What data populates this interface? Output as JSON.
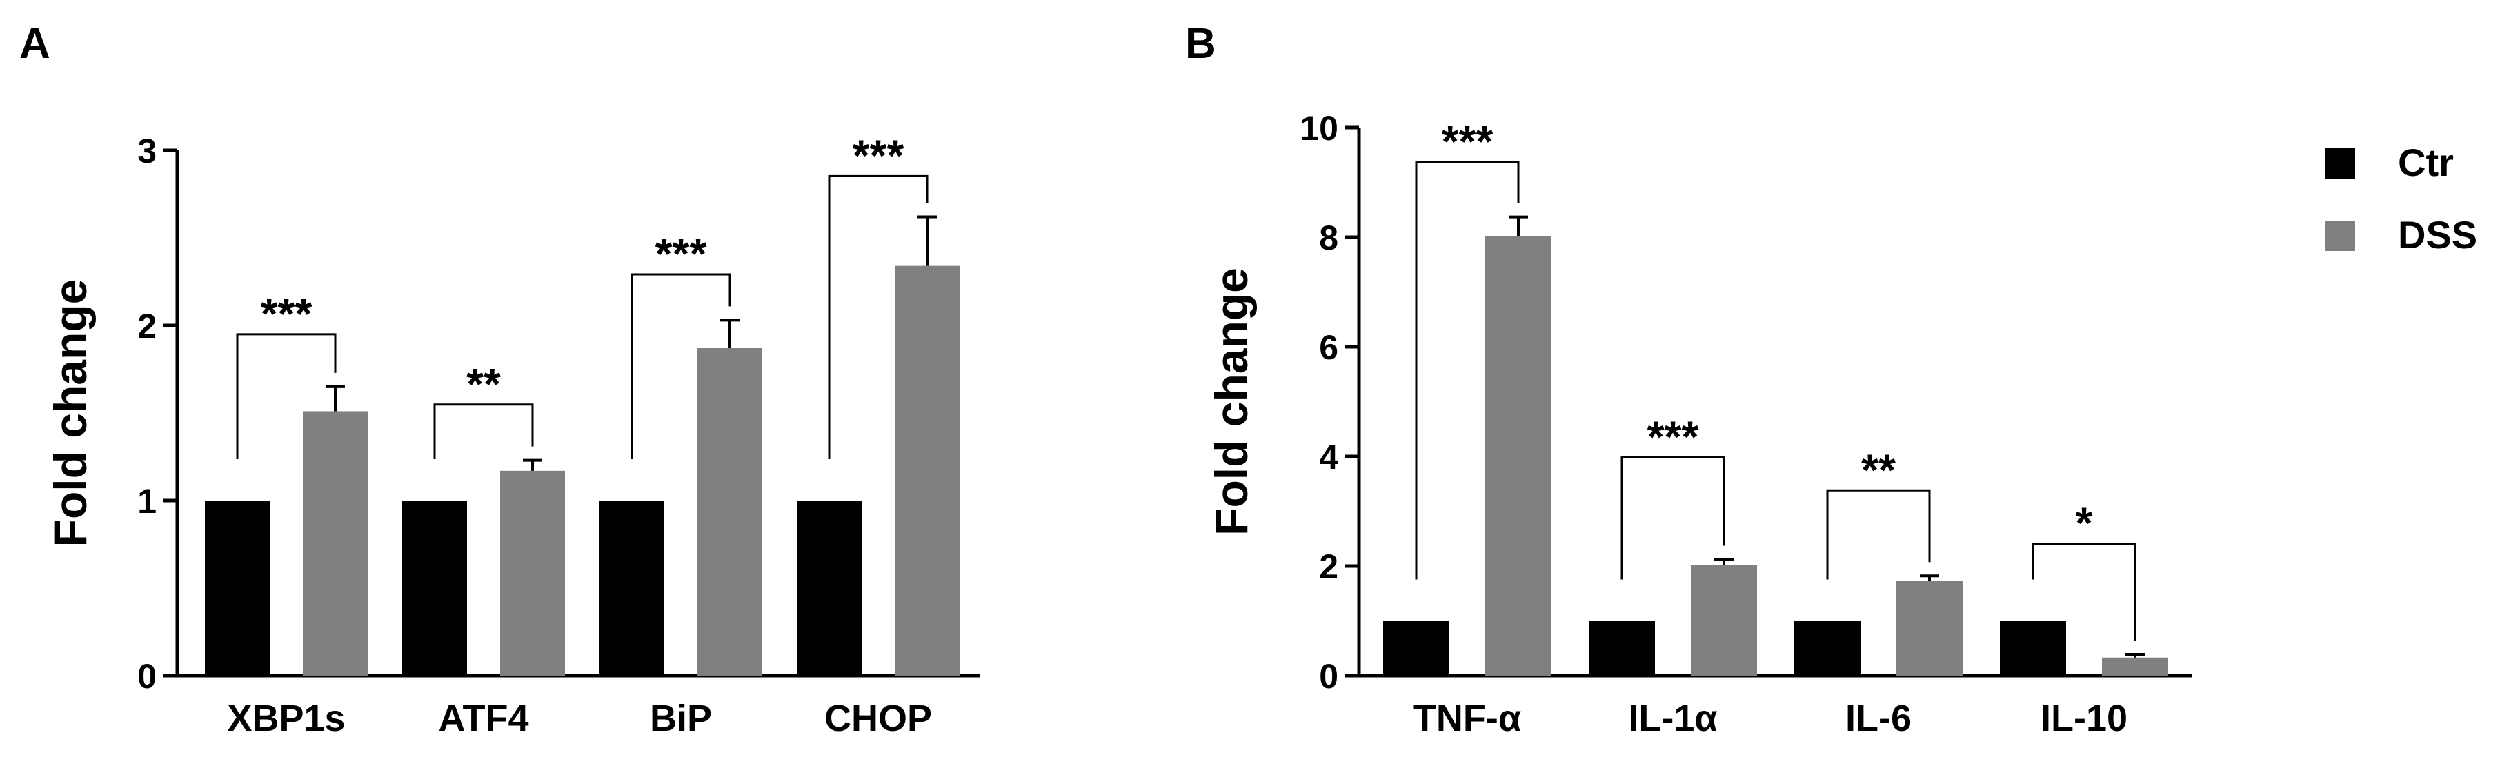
{
  "legend": {
    "position": "right",
    "items": [
      {
        "label": "Ctr",
        "color": "#000000"
      },
      {
        "label": "DSS",
        "color": "#808080"
      }
    ]
  },
  "colors": {
    "ctr": "#000000",
    "dss": "#808080",
    "axis": "#000000"
  },
  "chart_data": [
    {
      "type": "bar",
      "panel_label": "A",
      "ylabel": "Fold change",
      "xlabel": "",
      "ylim": [
        0,
        3
      ],
      "yticks": [
        0,
        1,
        2,
        3
      ],
      "grid": false,
      "categories": [
        "XBP1s",
        "ATF4",
        "BiP",
        "CHOP"
      ],
      "series": [
        {
          "name": "Ctr",
          "values": [
            1.0,
            1.0,
            1.0,
            1.0
          ],
          "errors": [
            0,
            0,
            0,
            0
          ]
        },
        {
          "name": "DSS",
          "values": [
            1.51,
            1.17,
            1.87,
            2.34
          ],
          "errors": [
            0.14,
            0.06,
            0.16,
            0.28
          ]
        }
      ],
      "significance": [
        "***",
        "**",
        "***",
        "***"
      ]
    },
    {
      "type": "bar",
      "panel_label": "B",
      "ylabel": "Fold change",
      "xlabel": "",
      "ylim": [
        0,
        10
      ],
      "yticks": [
        0,
        2,
        4,
        6,
        8,
        10
      ],
      "grid": false,
      "categories": [
        "TNF-α",
        "IL-1α",
        "IL-6",
        "IL-10"
      ],
      "series": [
        {
          "name": "Ctr",
          "values": [
            1.0,
            1.0,
            1.0,
            1.0
          ],
          "errors": [
            0,
            0,
            0,
            0
          ]
        },
        {
          "name": "DSS",
          "values": [
            8.02,
            2.02,
            1.73,
            0.33
          ],
          "errors": [
            0.35,
            0.1,
            0.09,
            0.06
          ]
        }
      ],
      "significance": [
        "***",
        "***",
        "**",
        "*"
      ]
    }
  ]
}
